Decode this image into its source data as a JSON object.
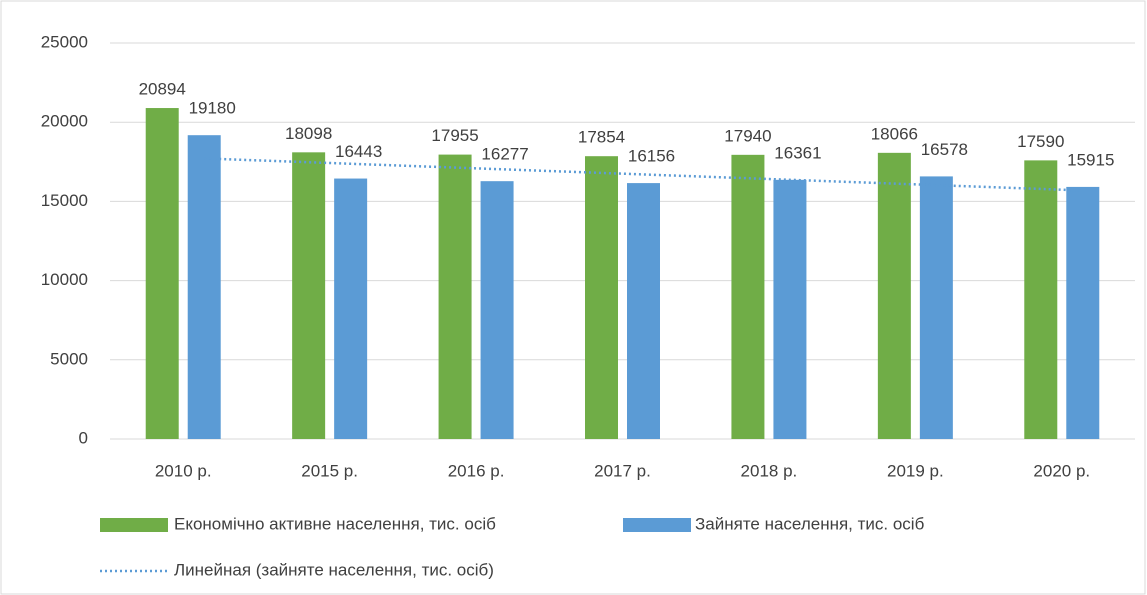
{
  "chart_data": {
    "type": "bar",
    "categories": [
      "2010 р.",
      "2015 р.",
      "2016 р.",
      "2017 р.",
      "2018 р.",
      "2019 р.",
      "2020 р."
    ],
    "series": [
      {
        "name": "Економічно активне населення, тис. осіб",
        "color": "#70ad47",
        "values": [
          20894,
          18098,
          17955,
          17854,
          17940,
          18066,
          17590
        ]
      },
      {
        "name": "Зайняте населення, тис. осіб",
        "color": "#5b9bd5",
        "values": [
          19180,
          16443,
          16277,
          16156,
          16361,
          16578,
          15915
        ],
        "trendline": {
          "type": "linear",
          "name": "Линейная (зайняте населення, тис. осіб)",
          "color": "#5b9bd5"
        }
      }
    ],
    "ylim": [
      0,
      25000
    ],
    "yticks": [
      0,
      5000,
      10000,
      15000,
      20000,
      25000
    ],
    "grid": true,
    "legend": "bottom"
  }
}
